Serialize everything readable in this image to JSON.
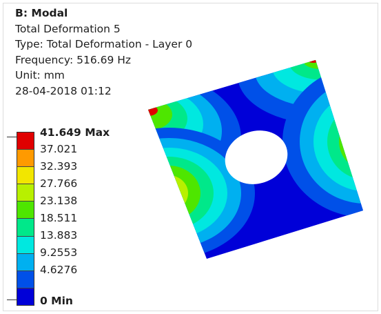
{
  "result": {
    "title": "B: Modal",
    "name": "Total Deformation 5",
    "type": "Type: Total Deformation - Layer 0",
    "frequency": "Frequency: 516.69 Hz",
    "unit": "Unit: mm",
    "timestamp": "28-04-2018 01:12"
  },
  "legend": {
    "labels": [
      "41.649 Max",
      "37.021",
      "32.393",
      "27.766",
      "23.138",
      "18.511",
      "13.883",
      "9.2553",
      "4.6276",
      "0 Min"
    ],
    "colors": [
      "#e00000",
      "#ff9a00",
      "#f2e600",
      "#b8f000",
      "#4ee600",
      "#00e88a",
      "#00e8e0",
      "#00b0f0",
      "#0050e8",
      "#0000d8"
    ]
  },
  "contour_colors": {
    "red": "#e00000",
    "orange": "#ff9a00",
    "yellow": "#f2e600",
    "lime": "#b8f000",
    "green": "#4ee600",
    "aqua_green": "#00e88a",
    "cyan": "#00e8e0",
    "light_blue": "#00b0f0",
    "blue": "#0050e8",
    "dark_blue": "#0000d8"
  }
}
